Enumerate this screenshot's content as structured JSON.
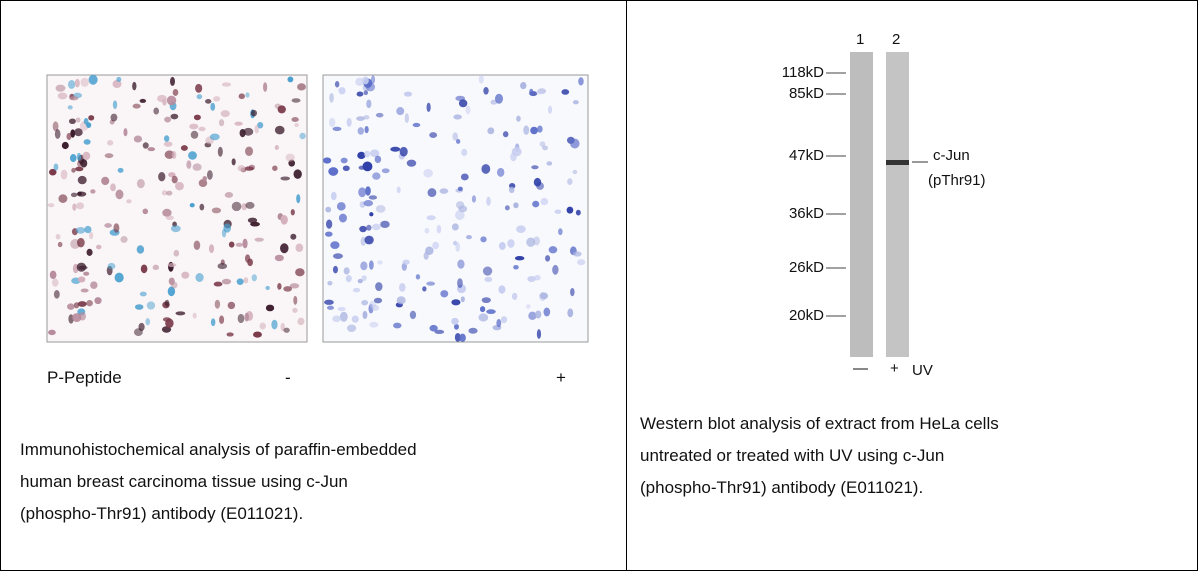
{
  "left_panel": {
    "stain_label": "P-Peptide",
    "minus_label": "-",
    "plus_label": "+",
    "caption": [
      "Immunohistochemical analysis of paraffin-embedded",
      "human breast carcinoma tissue using c-Jun",
      "(phospho-Thr91) antibody (E011021)."
    ]
  },
  "right_panel": {
    "lanes": [
      "1",
      "2"
    ],
    "markers": [
      "118kD",
      "85kD",
      "47kD",
      "36kD",
      "26kD",
      "20kD"
    ],
    "band_label": [
      "c-Jun",
      "(pThr91)"
    ],
    "treatment": [
      "—",
      "+",
      "UV"
    ],
    "caption": [
      "Western blot analysis of extract from HeLa cells",
      "untreated or treated with UV using c-Jun",
      "(phospho-Thr91) antibody (E011021)."
    ]
  }
}
